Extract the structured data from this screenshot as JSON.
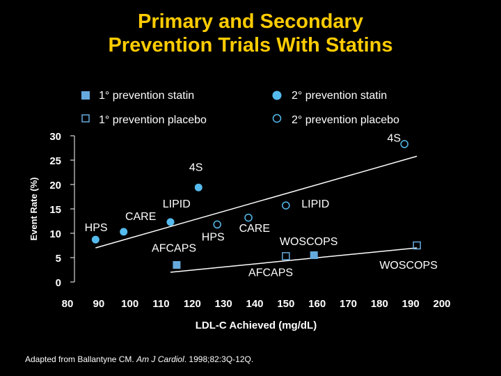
{
  "title_line1": "Primary and Secondary",
  "title_line2": "Prevention Trials With Statins",
  "legend": {
    "primary_statin": "1° prevention statin",
    "secondary_statin": "2° prevention statin",
    "primary_placebo": "1° prevention placebo",
    "secondary_placebo": "2° prevention placebo"
  },
  "source": {
    "prefix": "Adapted from Ballantyne CM. ",
    "journal": "Am J Cardiol",
    "suffix": ". 1998;82:3Q-12Q."
  },
  "colors": {
    "background": "#000000",
    "title": "#ffcc00",
    "secondary_marker": "#55bbee",
    "primary_marker": "#66aadd",
    "text": "#ffffff"
  },
  "chart_data": {
    "type": "scatter",
    "xlabel": "LDL-C Achieved (mg/dL)",
    "ylabel": "Event Rate (%)",
    "xlim": [
      80,
      200
    ],
    "ylim": [
      0,
      30
    ],
    "x_ticks": [
      "80",
      "90",
      "100",
      "110",
      "120",
      "130",
      "140",
      "150",
      "160",
      "170",
      "180",
      "190",
      "200"
    ],
    "y_ticks": [
      "0",
      "5",
      "10",
      "15",
      "20",
      "25",
      "30"
    ],
    "legend_position": "top",
    "grid": false,
    "series": [
      {
        "name": "1° prevention statin",
        "key": "primary_statin",
        "marker": "filled-square",
        "points": [
          {
            "label": "AFCAPS",
            "x": 115,
            "y": 3.5
          },
          {
            "label": "WOSCOPS",
            "x": 159,
            "y": 5.5
          }
        ]
      },
      {
        "name": "1° prevention placebo",
        "key": "primary_placebo",
        "marker": "open-square",
        "points": [
          {
            "label": "AFCAPS",
            "x": 150,
            "y": 5.3
          },
          {
            "label": "WOSCOPS",
            "x": 192,
            "y": 7.5
          }
        ]
      },
      {
        "name": "2° prevention statin",
        "key": "secondary_statin",
        "marker": "filled-circle",
        "points": [
          {
            "label": "HPS",
            "x": 89,
            "y": 8.7
          },
          {
            "label": "CARE",
            "x": 98,
            "y": 10.3
          },
          {
            "label": "LIPID",
            "x": 113,
            "y": 12.3
          },
          {
            "label": "4S",
            "x": 122,
            "y": 19.4
          }
        ]
      },
      {
        "name": "2° prevention placebo",
        "key": "secondary_placebo",
        "marker": "open-circle",
        "points": [
          {
            "label": "HPS",
            "x": 128,
            "y": 11.8
          },
          {
            "label": "CARE",
            "x": 138,
            "y": 13.2
          },
          {
            "label": "LIPID",
            "x": 150,
            "y": 15.7
          },
          {
            "label": "4S",
            "x": 188,
            "y": 28.3
          }
        ]
      }
    ],
    "trend_lines": [
      {
        "name": "secondary",
        "x": [
          89,
          192
        ],
        "y": [
          7.0,
          25.8
        ]
      },
      {
        "name": "primary",
        "x": [
          113,
          192
        ],
        "y": [
          2.0,
          7.0
        ]
      }
    ],
    "annotations": [
      {
        "text": "HPS",
        "x": 85.5,
        "y": 10.4
      },
      {
        "text": "CARE",
        "x": 98.5,
        "y": 12.7
      },
      {
        "text": "LIPID",
        "x": 110.5,
        "y": 15.3
      },
      {
        "text": "AFCAPS",
        "x": 107,
        "y": 6.2
      },
      {
        "text": "4S",
        "x": 119,
        "y": 22.8
      },
      {
        "text": "HPS",
        "x": 123,
        "y": 8.5
      },
      {
        "text": "CARE",
        "x": 135,
        "y": 10.3
      },
      {
        "text": "LIPID",
        "x": 155,
        "y": 15.3
      },
      {
        "text": "AFCAPS",
        "x": 138,
        "y": 1.2
      },
      {
        "text": "WOSCOPS",
        "x": 148,
        "y": 7.6
      },
      {
        "text": "WOSCOPS",
        "x": 180,
        "y": 2.7
      },
      {
        "text": "4S",
        "x": 182.5,
        "y": 28.8
      }
    ]
  }
}
